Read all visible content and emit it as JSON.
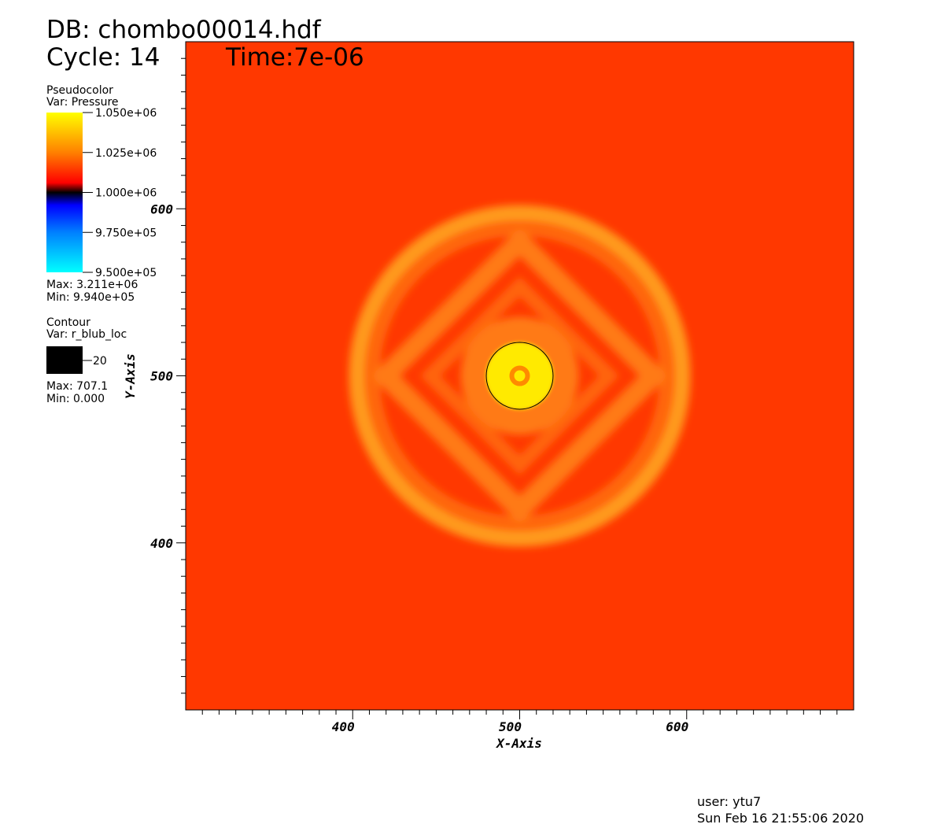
{
  "chart_data": {
    "type": "pseudocolor",
    "title": "DB: chombo00014.hdf",
    "cycle": "Cycle: 14",
    "time": "Time:7e-06",
    "xlabel": "X-Axis",
    "ylabel": "Y-Axis",
    "xlim": [
      300,
      700
    ],
    "ylim": [
      300,
      700
    ],
    "xticks": [
      400,
      500,
      600
    ],
    "yticks": [
      400,
      500,
      600
    ],
    "xminorticks": [
      310,
      320,
      330,
      340,
      350,
      360,
      370,
      380,
      390,
      410,
      420,
      430,
      440,
      450,
      460,
      470,
      480,
      490,
      510,
      520,
      530,
      540,
      550,
      560,
      570,
      580,
      590,
      610,
      620,
      630,
      640,
      650,
      660,
      670,
      680,
      690
    ],
    "yminorticks": [
      310,
      320,
      330,
      340,
      350,
      360,
      370,
      380,
      390,
      410,
      420,
      430,
      440,
      450,
      460,
      470,
      480,
      490,
      510,
      520,
      530,
      540,
      550,
      560,
      570,
      580,
      590,
      610,
      620,
      630,
      640,
      650,
      660,
      670,
      680,
      690
    ],
    "legends": [
      {
        "title": "Pseudocolor",
        "var": "Var: Pressure",
        "ticks": [
          {
            "value": 1050000,
            "label": "1.050e+06"
          },
          {
            "value": 1025000,
            "label": "1.025e+06"
          },
          {
            "value": 1000000,
            "label": "1.000e+06"
          },
          {
            "value": 975000,
            "label": "9.750e+05"
          },
          {
            "value": 950000,
            "label": "9.500e+05"
          }
        ],
        "max": "Max:  3.211e+06",
        "min": "Min:  9.940e+05"
      },
      {
        "title": "Contour",
        "var": "Var: r_blub_loc",
        "levels": [
          20
        ],
        "max": "Max: 707.1",
        "min": "Min: 0.000"
      }
    ],
    "user": "user: ytu7",
    "date": "Sun Feb 16 21:55:06 2020"
  }
}
